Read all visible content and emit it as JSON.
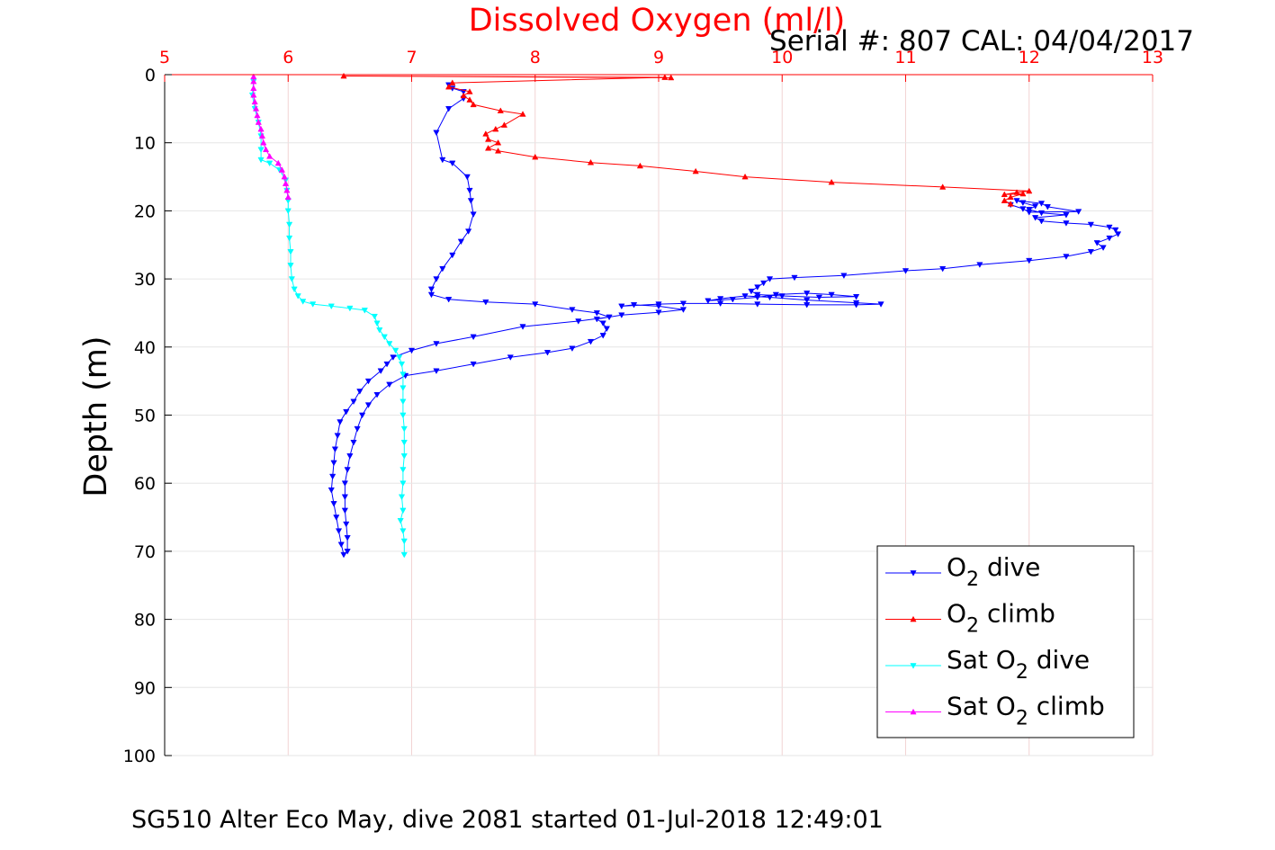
{
  "chart_data": {
    "type": "line",
    "title": "Dissolved Oxygen (ml/l)",
    "subtitle": "Serial #: 807  CAL: 04/04/2017",
    "xlabel": "",
    "ylabel": "Depth (m)",
    "xlim": [
      5,
      13
    ],
    "ylim": [
      0,
      100
    ],
    "y_reversed": true,
    "x_axis_position": "top",
    "xticks": [
      5,
      6,
      7,
      8,
      9,
      10,
      11,
      12,
      13
    ],
    "yticks": [
      0,
      10,
      20,
      30,
      40,
      50,
      60,
      70,
      80,
      90,
      100
    ],
    "grid": true,
    "legend_position": "lower-right",
    "colors": {
      "title": "#ff0000",
      "xaxis": "#ff0000",
      "grid": "#f2d4d4",
      "yaxis": "#000000"
    },
    "series": [
      {
        "name": "O2 dive",
        "color": "#0000ff",
        "marker": "triangle-down",
        "points": [
          [
            7.3,
            1.5
          ],
          [
            7.33,
            2.0
          ],
          [
            7.42,
            2.5
          ],
          [
            7.42,
            3.5
          ],
          [
            7.3,
            5.0
          ],
          [
            7.2,
            8.5
          ],
          [
            7.25,
            12.5
          ],
          [
            7.33,
            13.0
          ],
          [
            7.45,
            15.0
          ],
          [
            7.47,
            17.0
          ],
          [
            7.48,
            18.5
          ],
          [
            7.5,
            20.5
          ],
          [
            7.46,
            23.0
          ],
          [
            7.4,
            24.5
          ],
          [
            7.33,
            26.5
          ],
          [
            7.25,
            28.5
          ],
          [
            7.2,
            30.0
          ],
          [
            7.16,
            31.5
          ],
          [
            7.16,
            32.3
          ],
          [
            7.3,
            33.0
          ],
          [
            7.6,
            33.4
          ],
          [
            8.0,
            33.7
          ],
          [
            8.3,
            34.5
          ],
          [
            8.5,
            35.0
          ],
          [
            8.6,
            35.6
          ],
          [
            8.35,
            36.2
          ],
          [
            7.9,
            37.0
          ],
          [
            7.5,
            38.5
          ],
          [
            7.2,
            39.5
          ],
          [
            7.0,
            40.5
          ],
          [
            6.85,
            41.5
          ],
          [
            6.8,
            42.5
          ],
          [
            6.75,
            43.5
          ],
          [
            6.65,
            45.0
          ],
          [
            6.58,
            46.5
          ],
          [
            6.53,
            48.0
          ],
          [
            6.47,
            49.5
          ],
          [
            6.42,
            51.0
          ],
          [
            6.4,
            53.0
          ],
          [
            6.38,
            55.0
          ],
          [
            6.37,
            57.0
          ],
          [
            6.36,
            59.0
          ],
          [
            6.35,
            61.0
          ],
          [
            6.37,
            63.0
          ],
          [
            6.39,
            65.0
          ],
          [
            6.41,
            67.0
          ],
          [
            6.43,
            69.0
          ],
          [
            6.45,
            70.5
          ],
          [
            6.48,
            70.0
          ],
          [
            6.48,
            68.0
          ],
          [
            6.47,
            66.0
          ],
          [
            6.46,
            64.0
          ],
          [
            6.46,
            62.0
          ],
          [
            6.46,
            60.0
          ],
          [
            6.48,
            58.0
          ],
          [
            6.5,
            56.0
          ],
          [
            6.53,
            54.0
          ],
          [
            6.56,
            52.0
          ],
          [
            6.6,
            50.0
          ],
          [
            6.65,
            48.5
          ],
          [
            6.72,
            47.0
          ],
          [
            6.82,
            45.5
          ],
          [
            6.95,
            44.2
          ],
          [
            7.2,
            43.5
          ],
          [
            7.5,
            42.5
          ],
          [
            7.8,
            41.5
          ],
          [
            8.1,
            40.8
          ],
          [
            8.3,
            40.2
          ],
          [
            8.45,
            39.2
          ],
          [
            8.55,
            38.3
          ],
          [
            8.58,
            37.3
          ],
          [
            8.55,
            36.5
          ],
          [
            8.5,
            35.9
          ],
          [
            8.7,
            35.3
          ],
          [
            9.0,
            34.9
          ],
          [
            9.2,
            34.5
          ],
          [
            9.0,
            34.0
          ],
          [
            8.8,
            33.8
          ],
          [
            8.7,
            34.0
          ],
          [
            9.0,
            33.7
          ],
          [
            9.2,
            33.6
          ],
          [
            9.5,
            33.6
          ],
          [
            9.8,
            33.7
          ],
          [
            10.2,
            33.8
          ],
          [
            10.6,
            33.8
          ],
          [
            10.8,
            33.7
          ],
          [
            10.6,
            33.5
          ],
          [
            10.2,
            33.1
          ],
          [
            9.9,
            32.7
          ],
          [
            9.7,
            32.5
          ],
          [
            9.5,
            32.9
          ],
          [
            9.4,
            33.2
          ],
          [
            9.6,
            33.0
          ],
          [
            9.8,
            32.7
          ],
          [
            9.95,
            32.3
          ],
          [
            10.2,
            32.1
          ],
          [
            10.4,
            32.3
          ],
          [
            10.6,
            32.6
          ],
          [
            10.3,
            32.7
          ],
          [
            10.0,
            32.5
          ],
          [
            9.8,
            32.3
          ],
          [
            9.75,
            31.8
          ],
          [
            9.8,
            31.2
          ],
          [
            9.85,
            30.6
          ],
          [
            9.9,
            30.0
          ],
          [
            10.1,
            29.8
          ],
          [
            10.5,
            29.5
          ],
          [
            11.0,
            28.8
          ],
          [
            11.3,
            28.5
          ],
          [
            11.6,
            27.9
          ],
          [
            12.0,
            27.3
          ],
          [
            12.3,
            26.7
          ],
          [
            12.5,
            26.0
          ],
          [
            12.6,
            25.4
          ],
          [
            12.55,
            24.7
          ],
          [
            12.65,
            24.0
          ],
          [
            12.72,
            23.4
          ],
          [
            12.7,
            22.8
          ],
          [
            12.65,
            22.4
          ],
          [
            12.5,
            22.0
          ],
          [
            12.3,
            21.8
          ],
          [
            12.1,
            21.5
          ],
          [
            12.05,
            21.0
          ],
          [
            12.3,
            20.6
          ],
          [
            12.1,
            20.3
          ],
          [
            12.0,
            19.8
          ],
          [
            12.05,
            19.3
          ],
          [
            11.95,
            18.8
          ],
          [
            11.9,
            18.5
          ],
          [
            12.1,
            18.9
          ],
          [
            12.15,
            19.4
          ],
          [
            12.4,
            20.1
          ],
          [
            12.0,
            20.2
          ],
          [
            11.95,
            19.7
          ],
          [
            11.85,
            19.1
          ]
        ]
      },
      {
        "name": "O2 climb",
        "color": "#ff0000",
        "marker": "triangle-up",
        "points": [
          [
            11.85,
            19.0
          ],
          [
            11.8,
            18.5
          ],
          [
            11.85,
            18.0
          ],
          [
            11.95,
            17.5
          ],
          [
            11.8,
            17.6
          ],
          [
            11.9,
            17.3
          ],
          [
            12.0,
            17.1
          ],
          [
            11.3,
            16.5
          ],
          [
            10.4,
            15.8
          ],
          [
            9.7,
            15.0
          ],
          [
            9.3,
            14.2
          ],
          [
            8.85,
            13.4
          ],
          [
            8.45,
            12.9
          ],
          [
            8.0,
            12.1
          ],
          [
            7.7,
            11.2
          ],
          [
            7.62,
            10.8
          ],
          [
            7.7,
            10.0
          ],
          [
            7.62,
            9.5
          ],
          [
            7.6,
            8.7
          ],
          [
            7.68,
            8.0
          ],
          [
            7.75,
            7.4
          ],
          [
            7.9,
            5.8
          ],
          [
            7.72,
            5.3
          ],
          [
            7.5,
            4.4
          ],
          [
            7.47,
            3.7
          ],
          [
            7.42,
            3.1
          ],
          [
            7.47,
            2.5
          ],
          [
            7.3,
            1.8
          ],
          [
            7.33,
            1.2
          ],
          [
            9.05,
            0.4
          ],
          [
            6.45,
            0.2
          ],
          [
            9.1,
            0.45
          ]
        ]
      },
      {
        "name": "Sat O2 dive",
        "color": "#00ffff",
        "marker": "triangle-down",
        "points": [
          [
            5.72,
            1.0
          ],
          [
            5.71,
            3.0
          ],
          [
            5.73,
            5.0
          ],
          [
            5.76,
            7.0
          ],
          [
            5.78,
            9.0
          ],
          [
            5.78,
            11.0
          ],
          [
            5.78,
            12.5
          ],
          [
            5.85,
            13.0
          ],
          [
            5.93,
            14.0
          ],
          [
            5.98,
            15.5
          ],
          [
            5.99,
            17.0
          ],
          [
            6.0,
            18.5
          ],
          [
            6.0,
            20.0
          ],
          [
            6.01,
            22.0
          ],
          [
            6.01,
            24.0
          ],
          [
            6.02,
            26.0
          ],
          [
            6.02,
            28.0
          ],
          [
            6.03,
            30.0
          ],
          [
            6.05,
            31.5
          ],
          [
            6.08,
            32.5
          ],
          [
            6.12,
            33.3
          ],
          [
            6.2,
            33.7
          ],
          [
            6.35,
            34.0
          ],
          [
            6.5,
            34.3
          ],
          [
            6.62,
            34.6
          ],
          [
            6.7,
            35.5
          ],
          [
            6.72,
            36.5
          ],
          [
            6.74,
            37.5
          ],
          [
            6.78,
            38.5
          ],
          [
            6.82,
            39.5
          ],
          [
            6.87,
            40.5
          ],
          [
            6.9,
            41.5
          ],
          [
            6.92,
            42.5
          ],
          [
            6.93,
            44.0
          ],
          [
            6.93,
            46.0
          ],
          [
            6.93,
            48.0
          ],
          [
            6.93,
            50.0
          ],
          [
            6.94,
            52.0
          ],
          [
            6.94,
            54.0
          ],
          [
            6.94,
            56.0
          ],
          [
            6.93,
            58.0
          ],
          [
            6.93,
            60.0
          ],
          [
            6.92,
            62.0
          ],
          [
            6.93,
            64.0
          ],
          [
            6.91,
            65.5
          ],
          [
            6.93,
            67.0
          ],
          [
            6.94,
            68.5
          ],
          [
            6.94,
            70.5
          ]
        ]
      },
      {
        "name": "Sat O2 climb",
        "color": "#ff00ff",
        "marker": "triangle-up",
        "points": [
          [
            6.0,
            18.0
          ],
          [
            5.99,
            17.0
          ],
          [
            5.98,
            16.0
          ],
          [
            5.97,
            15.0
          ],
          [
            5.95,
            14.0
          ],
          [
            5.92,
            13.0
          ],
          [
            5.85,
            12.0
          ],
          [
            5.82,
            11.0
          ],
          [
            5.8,
            10.0
          ],
          [
            5.79,
            9.0
          ],
          [
            5.78,
            8.0
          ],
          [
            5.76,
            7.0
          ],
          [
            5.75,
            6.0
          ],
          [
            5.74,
            5.0
          ],
          [
            5.73,
            4.0
          ],
          [
            5.72,
            3.0
          ],
          [
            5.72,
            2.0
          ],
          [
            5.72,
            1.0
          ],
          [
            5.72,
            0.3
          ]
        ]
      }
    ],
    "legend": [
      {
        "base": "O",
        "sub": "2",
        "rest": " dive"
      },
      {
        "base": "O",
        "sub": "2",
        "rest": " climb"
      },
      {
        "base": "Sat O",
        "sub": "2",
        "rest": " dive"
      },
      {
        "base": "Sat O",
        "sub": "2",
        "rest": " climb"
      }
    ]
  },
  "caption": "SG510 Alter Eco May, dive 2081 started 01-Jul-2018 12:49:01"
}
